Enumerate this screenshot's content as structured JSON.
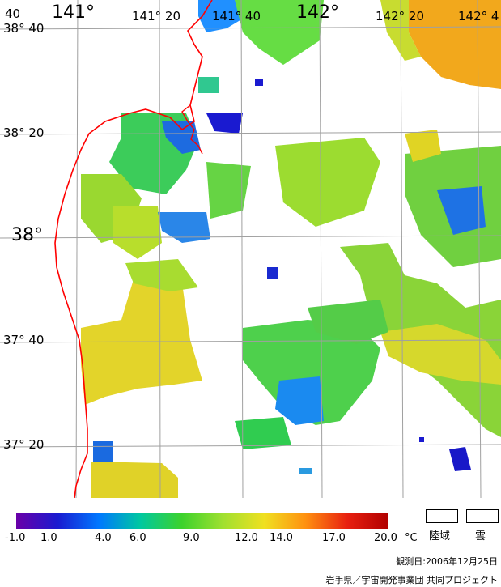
{
  "lat_labels": [
    {
      "id": "38-40",
      "text": "38° 40"
    },
    {
      "id": "38-20",
      "text": "38° 20"
    },
    {
      "id": "38",
      "text": "38°"
    },
    {
      "id": "37-40",
      "text": "37° 40"
    },
    {
      "id": "37-20",
      "text": "37° 20"
    }
  ],
  "lon_labels": [
    {
      "id": "140-40",
      "text": "40"
    },
    {
      "id": "141",
      "text": "141°"
    },
    {
      "id": "141-20",
      "text": "141° 20"
    },
    {
      "id": "141-40",
      "text": "141° 40"
    },
    {
      "id": "142",
      "text": "142°"
    },
    {
      "id": "142-20",
      "text": "142° 20"
    },
    {
      "id": "142-40",
      "text": "142° 4"
    }
  ],
  "scale_ticks": [
    "-1.0",
    "1.0",
    "4.0",
    "6.0",
    "9.0",
    "12.0",
    "14.0",
    "17.0",
    "20.0"
  ],
  "scale_unit": "°C",
  "scale_colors": [
    "#6a00a8",
    "#1a1ad0",
    "#0078ff",
    "#00c8a0",
    "#3cd22c",
    "#a0e030",
    "#f0e020",
    "#ff9010",
    "#e82010",
    "#b00000"
  ],
  "legend": {
    "land": "陸域",
    "cloud": "雲"
  },
  "observation_date": "観測日:2006年12月25日",
  "credit": "岩手県／宇宙開発事業団 共同プロジェクト",
  "colors": {
    "coastline": "#ff0000",
    "grid": "#a0a0a0",
    "land": "#ffffff"
  }
}
